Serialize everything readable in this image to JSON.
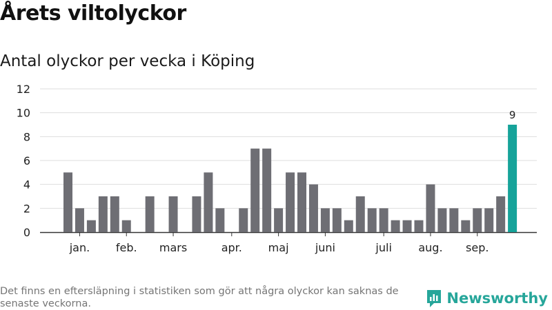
{
  "header": {
    "title": "Årets viltolyckor",
    "subtitle": "Antal olyckor per vecka i Köping"
  },
  "footer": {
    "note": "Det finns en eftersläpning i statistiken som gör att några olyckor kan saknas de senaste veckorna.",
    "brand": "Newsworthy"
  },
  "colors": {
    "bar": "#6e6e74",
    "highlight": "#16a39a",
    "grid": "#dddddd",
    "axis": "#333333",
    "brand": "#26a69a"
  },
  "chart_data": {
    "type": "bar",
    "title": "Årets viltolyckor",
    "subtitle": "Antal olyckor per vecka i Köping",
    "xlabel": "",
    "ylabel": "",
    "ylim": [
      0,
      12
    ],
    "yticks": [
      "0",
      "2",
      "4",
      "6",
      "8",
      "10",
      "12"
    ],
    "grid": true,
    "weeks": [
      1,
      2,
      3,
      4,
      5,
      6,
      7,
      8,
      9,
      10,
      11,
      12,
      13,
      14,
      15,
      16,
      17,
      18,
      19,
      20,
      21,
      22,
      23,
      24,
      25,
      26,
      27,
      28,
      29,
      30,
      31,
      32,
      33,
      34,
      35,
      36,
      37,
      38,
      39,
      40
    ],
    "values": [
      5,
      2,
      1,
      3,
      3,
      1,
      0,
      3,
      0,
      3,
      0,
      3,
      5,
      2,
      0,
      2,
      7,
      7,
      2,
      5,
      5,
      4,
      2,
      2,
      1,
      3,
      2,
      2,
      1,
      1,
      1,
      4,
      2,
      2,
      1,
      2,
      2,
      3,
      9,
      null
    ],
    "highlight_index": 38,
    "data_labels": [
      {
        "index": 38,
        "text": "9"
      }
    ],
    "month_labels": [
      {
        "label": "jan.",
        "week": 2
      },
      {
        "label": "feb.",
        "week": 6
      },
      {
        "label": "mars",
        "week": 10
      },
      {
        "label": "apr.",
        "week": 15
      },
      {
        "label": "maj",
        "week": 19
      },
      {
        "label": "juni",
        "week": 23
      },
      {
        "label": "juli",
        "week": 28
      },
      {
        "label": "aug.",
        "week": 32
      },
      {
        "label": "sep.",
        "week": 36
      }
    ]
  }
}
